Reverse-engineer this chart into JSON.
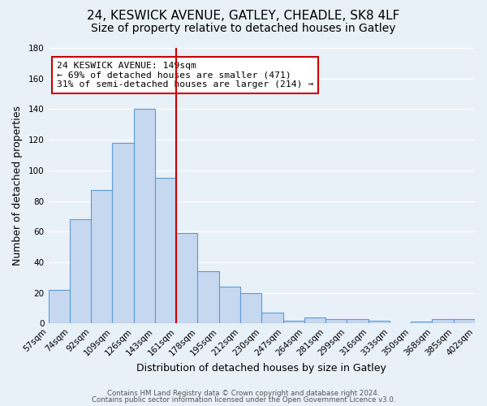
{
  "title": "24, KESWICK AVENUE, GATLEY, CHEADLE, SK8 4LF",
  "subtitle": "Size of property relative to detached houses in Gatley",
  "xlabel": "Distribution of detached houses by size in Gatley",
  "ylabel": "Number of detached properties",
  "bin_labels": [
    "57sqm",
    "74sqm",
    "92sqm",
    "109sqm",
    "126sqm",
    "143sqm",
    "161sqm",
    "178sqm",
    "195sqm",
    "212sqm",
    "230sqm",
    "247sqm",
    "264sqm",
    "281sqm",
    "299sqm",
    "316sqm",
    "333sqm",
    "350sqm",
    "368sqm",
    "385sqm",
    "402sqm"
  ],
  "bar_values": [
    22,
    68,
    87,
    118,
    140,
    95,
    59,
    34,
    24,
    20,
    7,
    2,
    4,
    3,
    3,
    2,
    0,
    1,
    3,
    3
  ],
  "bar_color": "#c5d8f0",
  "bar_edge_color": "#5b9bd5",
  "vline_color": "#cc0000",
  "vline_pos": 6,
  "ylim": [
    0,
    180
  ],
  "yticks": [
    0,
    20,
    40,
    60,
    80,
    100,
    120,
    140,
    160,
    180
  ],
  "annotation_title": "24 KESWICK AVENUE: 149sqm",
  "annotation_line1": "← 69% of detached houses are smaller (471)",
  "annotation_line2": "31% of semi-detached houses are larger (214) →",
  "annotation_box_color": "#ffffff",
  "annotation_box_edge": "#cc0000",
  "footer_line1": "Contains HM Land Registry data © Crown copyright and database right 2024.",
  "footer_line2": "Contains public sector information licensed under the Open Government Licence v3.0.",
  "background_color": "#e8f0f8",
  "grid_color": "#ffffff",
  "title_fontsize": 11,
  "subtitle_fontsize": 10
}
